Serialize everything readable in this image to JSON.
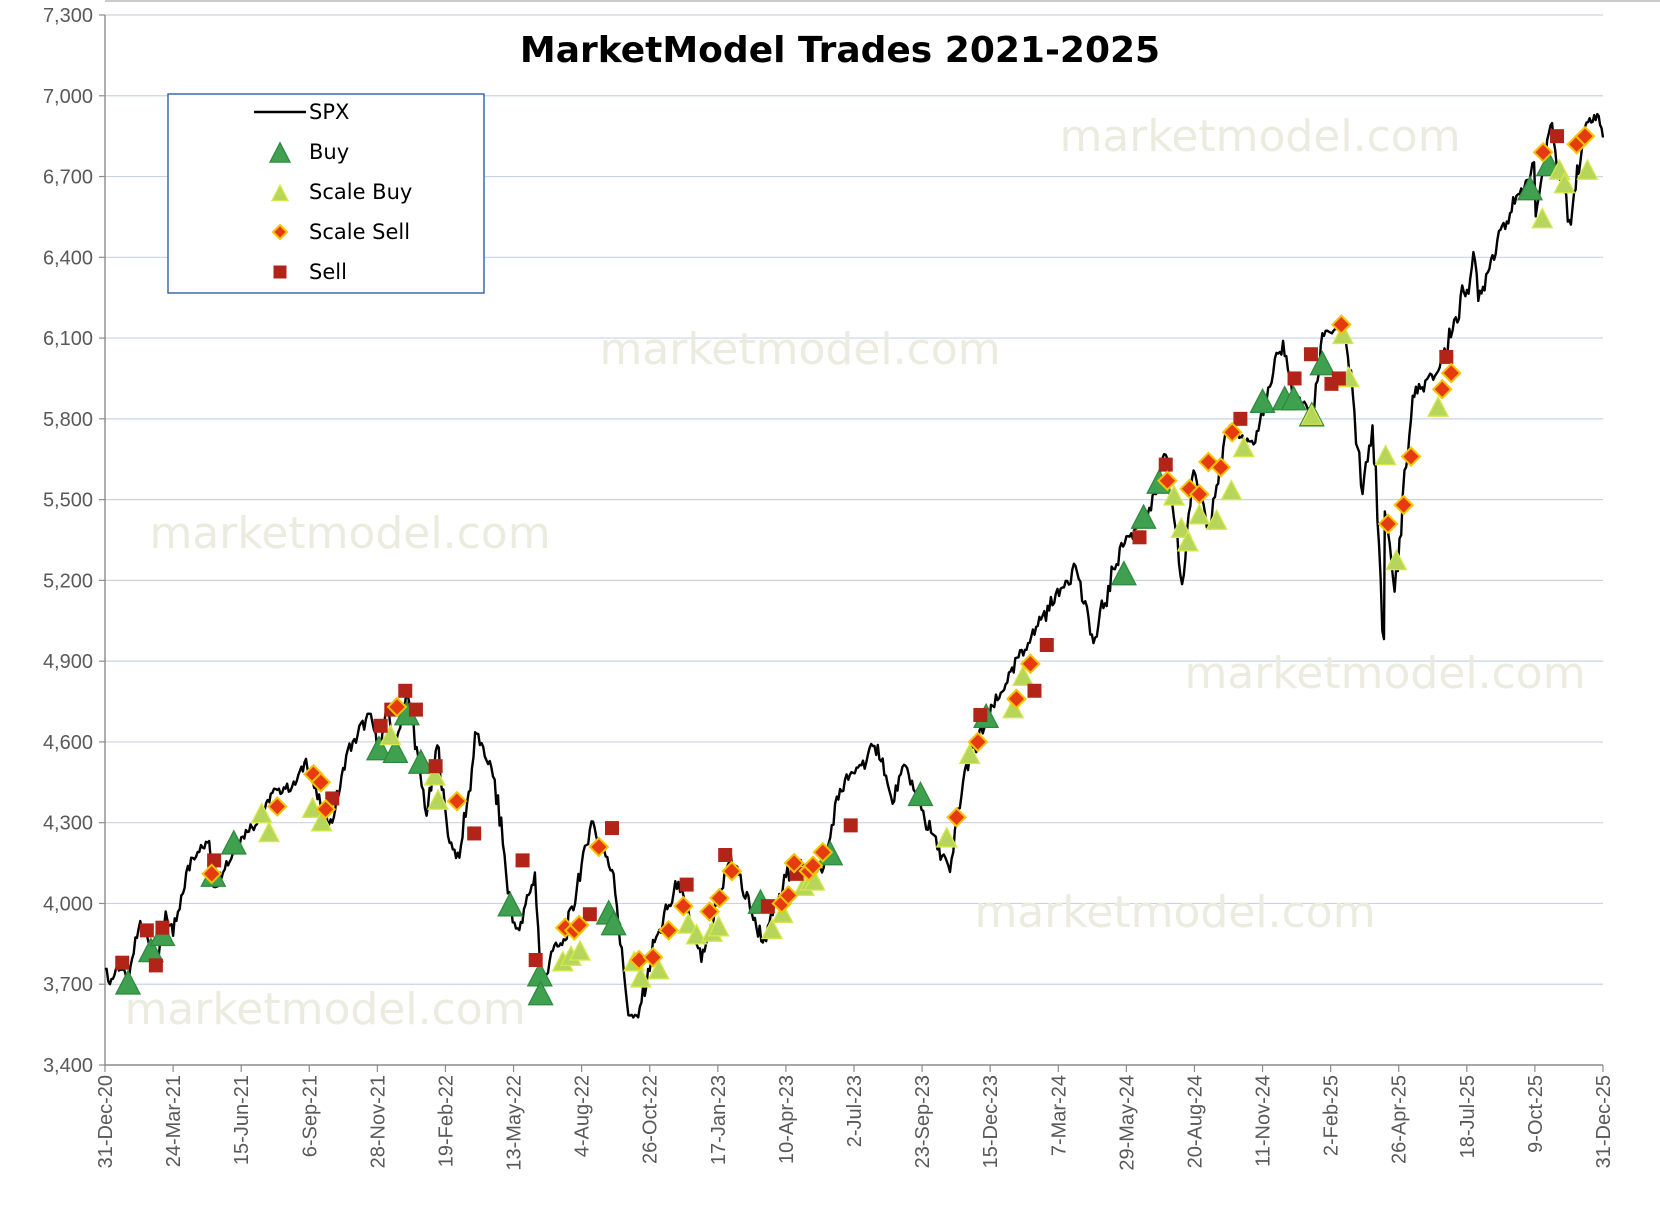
{
  "chart_data": {
    "type": "line",
    "title": "MarketModel Trades 2021-2025",
    "watermark_text": "marketmodel.com",
    "xlabel": "",
    "ylabel": "",
    "ylim": [
      3400,
      7300
    ],
    "xlim": [
      "2020-12-31",
      "2025-12-31"
    ],
    "grid": true,
    "legend_position": "top-left",
    "y_ticks": [
      "3,400",
      "3,700",
      "4,000",
      "4,300",
      "4,600",
      "4,900",
      "5,200",
      "5,500",
      "5,800",
      "6,100",
      "6,400",
      "6,700",
      "7,000",
      "7,300"
    ],
    "y_tick_values": [
      3400,
      3700,
      4000,
      4300,
      4600,
      4900,
      5200,
      5500,
      5800,
      6100,
      6400,
      6700,
      7000,
      7300
    ],
    "x_ticks": [
      {
        "label": "31-Dec-20",
        "date": "2020-12-31"
      },
      {
        "label": "24-Mar-21",
        "date": "2021-03-24"
      },
      {
        "label": "15-Jun-21",
        "date": "2021-06-15"
      },
      {
        "label": "6-Sep-21",
        "date": "2021-09-06"
      },
      {
        "label": "28-Nov-21",
        "date": "2021-11-28"
      },
      {
        "label": "19-Feb-22",
        "date": "2022-02-19"
      },
      {
        "label": "13-May-22",
        "date": "2022-05-13"
      },
      {
        "label": "4-Aug-22",
        "date": "2022-08-04"
      },
      {
        "label": "26-Oct-22",
        "date": "2022-10-26"
      },
      {
        "label": "17-Jan-23",
        "date": "2023-01-17"
      },
      {
        "label": "10-Apr-23",
        "date": "2023-04-10"
      },
      {
        "label": "2-Jul-23",
        "date": "2023-07-02"
      },
      {
        "label": "23-Sep-23",
        "date": "2023-09-23"
      },
      {
        "label": "15-Dec-23",
        "date": "2023-12-15"
      },
      {
        "label": "7-Mar-24",
        "date": "2024-03-07"
      },
      {
        "label": "29-May-24",
        "date": "2024-05-29"
      },
      {
        "label": "20-Aug-24",
        "date": "2024-08-20"
      },
      {
        "label": "11-Nov-24",
        "date": "2024-11-11"
      },
      {
        "label": "2-Feb-25",
        "date": "2025-02-02"
      },
      {
        "label": "26-Apr-25",
        "date": "2025-04-26"
      },
      {
        "label": "18-Jul-25",
        "date": "2025-07-18"
      },
      {
        "label": "9-Oct-25",
        "date": "2025-10-09"
      },
      {
        "label": "31-Dec-25",
        "date": "2025-12-31"
      }
    ],
    "colors": {
      "spx": "#000000",
      "buy": "#3fa14f",
      "scale_buy": "#b5d65a",
      "scale_buy_edge": "#d8e84a",
      "scale_sell": "#e63b10",
      "scale_sell_edge": "#f5c400",
      "sell": "#b32418",
      "grid": "#c9d4e3",
      "legend_border": "#2e5faa",
      "watermark": "#ecebdf"
    },
    "legend": [
      {
        "key": "spx",
        "label": "SPX",
        "marker": "line"
      },
      {
        "key": "buy",
        "label": "Buy",
        "marker": "triangle"
      },
      {
        "key": "scale_buy",
        "label": "Scale Buy",
        "marker": "triangle"
      },
      {
        "key": "scale_sell",
        "label": "Scale Sell",
        "marker": "diamond"
      },
      {
        "key": "sell",
        "label": "Sell",
        "marker": "square"
      }
    ],
    "series": [
      {
        "name": "SPX",
        "points": [
          [
            "2020-12-31",
            3756
          ],
          [
            "2021-01-06",
            3700
          ],
          [
            "2021-01-15",
            3770
          ],
          [
            "2021-01-29",
            3714
          ],
          [
            "2021-02-12",
            3935
          ],
          [
            "2021-03-04",
            3768
          ],
          [
            "2021-03-15",
            3970
          ],
          [
            "2021-03-24",
            3880
          ],
          [
            "2021-04-15",
            4170
          ],
          [
            "2021-05-07",
            4232
          ],
          [
            "2021-05-12",
            4063
          ],
          [
            "2021-06-15",
            4246
          ],
          [
            "2021-07-08",
            4320
          ],
          [
            "2021-07-23",
            4411
          ],
          [
            "2021-08-20",
            4441
          ],
          [
            "2021-09-02",
            4537
          ],
          [
            "2021-09-20",
            4358
          ],
          [
            "2021-10-04",
            4300
          ],
          [
            "2021-10-21",
            4549
          ],
          [
            "2021-11-18",
            4705
          ],
          [
            "2021-11-30",
            4567
          ],
          [
            "2021-12-10",
            4712
          ],
          [
            "2021-12-20",
            4568
          ],
          [
            "2022-01-03",
            4796
          ],
          [
            "2022-01-27",
            4326
          ],
          [
            "2022-02-09",
            4587
          ],
          [
            "2022-02-24",
            4225
          ],
          [
            "2022-03-08",
            4170
          ],
          [
            "2022-03-29",
            4631
          ],
          [
            "2022-04-20",
            4460
          ],
          [
            "2022-05-12",
            3930
          ],
          [
            "2022-05-20",
            3901
          ],
          [
            "2022-06-08",
            4115
          ],
          [
            "2022-06-16",
            3666
          ],
          [
            "2022-06-28",
            3821
          ],
          [
            "2022-07-15",
            3863
          ],
          [
            "2022-08-16",
            4305
          ],
          [
            "2022-09-12",
            4110
          ],
          [
            "2022-09-30",
            3585
          ],
          [
            "2022-10-12",
            3577
          ],
          [
            "2022-11-01",
            3856
          ],
          [
            "2022-11-30",
            4080
          ],
          [
            "2022-12-28",
            3783
          ],
          [
            "2023-01-10",
            3919
          ],
          [
            "2023-02-02",
            4179
          ],
          [
            "2023-03-13",
            3855
          ],
          [
            "2023-04-18",
            4154
          ],
          [
            "2023-05-24",
            4115
          ],
          [
            "2023-06-15",
            4425
          ],
          [
            "2023-07-31",
            4589
          ],
          [
            "2023-08-18",
            4370
          ],
          [
            "2023-09-01",
            4515
          ],
          [
            "2023-10-04",
            4263
          ],
          [
            "2023-10-27",
            4117
          ],
          [
            "2023-11-14",
            4495
          ],
          [
            "2023-12-28",
            4783
          ],
          [
            "2024-02-09",
            5027
          ],
          [
            "2024-03-28",
            5254
          ],
          [
            "2024-04-19",
            4967
          ],
          [
            "2024-05-21",
            5321
          ],
          [
            "2024-06-28",
            5460
          ],
          [
            "2024-07-16",
            5667
          ],
          [
            "2024-08-05",
            5186
          ],
          [
            "2024-08-19",
            5608
          ],
          [
            "2024-09-06",
            5408
          ],
          [
            "2024-09-30",
            5762
          ],
          [
            "2024-10-31",
            5705
          ],
          [
            "2024-12-06",
            6090
          ],
          [
            "2024-12-18",
            5872
          ],
          [
            "2025-01-13",
            5836
          ],
          [
            "2025-01-23",
            6118
          ],
          [
            "2025-02-19",
            6144
          ],
          [
            "2025-03-13",
            5521
          ],
          [
            "2025-03-25",
            5776
          ],
          [
            "2025-04-08",
            4982
          ],
          [
            "2025-04-09",
            5456
          ],
          [
            "2025-04-21",
            5158
          ],
          [
            "2025-05-13",
            5886
          ],
          [
            "2025-06-13",
            5977
          ],
          [
            "2025-07-28",
            6389
          ],
          [
            "2025-08-01",
            6238
          ],
          [
            "2025-08-28",
            6502
          ],
          [
            "2025-09-30",
            6688
          ],
          [
            "2025-10-08",
            6753
          ],
          [
            "2025-10-10",
            6552
          ],
          [
            "2025-10-28",
            6890
          ],
          [
            "2025-11-20",
            6538
          ],
          [
            "2025-12-11",
            6901
          ],
          [
            "2025-12-24",
            6932
          ],
          [
            "2025-12-31",
            6845
          ]
        ]
      },
      {
        "name": "Buy",
        "points": [
          [
            "2021-01-28",
            3700
          ],
          [
            "2021-02-25",
            3820
          ],
          [
            "2021-03-11",
            3880
          ],
          [
            "2021-05-12",
            4100
          ],
          [
            "2021-06-06",
            4220
          ],
          [
            "2021-11-30",
            4570
          ],
          [
            "2021-12-20",
            4560
          ],
          [
            "2022-01-03",
            4700
          ],
          [
            "2022-01-20",
            4520
          ],
          [
            "2022-05-09",
            3990
          ],
          [
            "2022-06-14",
            3730
          ],
          [
            "2022-06-15",
            3660
          ],
          [
            "2022-09-06",
            3960
          ],
          [
            "2022-09-12",
            3920
          ],
          [
            "2023-03-10",
            4000
          ],
          [
            "2023-06-03",
            4180
          ],
          [
            "2023-09-21",
            4400
          ],
          [
            "2023-12-10",
            4690
          ],
          [
            "2024-05-26",
            5220
          ],
          [
            "2024-06-19",
            5430
          ],
          [
            "2024-07-08",
            5560
          ],
          [
            "2024-11-11",
            5860
          ],
          [
            "2024-12-08",
            5870
          ],
          [
            "2024-12-19",
            5870
          ],
          [
            "2025-01-10",
            5810
          ],
          [
            "2025-01-23",
            6000
          ],
          [
            "2025-10-03",
            6650
          ],
          [
            "2025-10-26",
            6740
          ]
        ]
      },
      {
        "name": "Scale Buy",
        "points": [
          [
            "2021-07-10",
            4330
          ],
          [
            "2021-07-19",
            4260
          ],
          [
            "2021-09-10",
            4350
          ],
          [
            "2021-09-21",
            4300
          ],
          [
            "2021-12-14",
            4620
          ],
          [
            "2022-02-06",
            4470
          ],
          [
            "2022-02-10",
            4380
          ],
          [
            "2022-07-12",
            3780
          ],
          [
            "2022-07-22",
            3800
          ],
          [
            "2022-08-02",
            3820
          ],
          [
            "2022-10-07",
            3780
          ],
          [
            "2022-10-15",
            3720
          ],
          [
            "2022-11-06",
            3750
          ],
          [
            "2022-12-12",
            3920
          ],
          [
            "2022-12-22",
            3880
          ],
          [
            "2023-01-10",
            3890
          ],
          [
            "2023-01-18",
            3910
          ],
          [
            "2023-03-24",
            3900
          ],
          [
            "2023-04-06",
            3960
          ],
          [
            "2023-05-02",
            4060
          ],
          [
            "2023-05-10",
            4080
          ],
          [
            "2023-05-15",
            4080
          ],
          [
            "2023-10-23",
            4240
          ],
          [
            "2023-11-20",
            4550
          ],
          [
            "2024-01-12",
            4720
          ],
          [
            "2024-01-24",
            4840
          ],
          [
            "2024-07-26",
            5510
          ],
          [
            "2024-08-04",
            5390
          ],
          [
            "2024-08-12",
            5340
          ],
          [
            "2024-08-26",
            5440
          ],
          [
            "2024-09-16",
            5420
          ],
          [
            "2024-10-04",
            5530
          ],
          [
            "2024-10-19",
            5690
          ],
          [
            "2025-01-10",
            5810
          ],
          [
            "2025-02-17",
            6110
          ],
          [
            "2025-02-24",
            5950
          ],
          [
            "2025-04-10",
            5660
          ],
          [
            "2025-04-23",
            5270
          ],
          [
            "2025-06-13",
            5840
          ],
          [
            "2025-10-18",
            6540
          ],
          [
            "2025-11-08",
            6720
          ],
          [
            "2025-11-14",
            6670
          ],
          [
            "2025-12-12",
            6720
          ]
        ]
      },
      {
        "name": "Scale Sell",
        "points": [
          [
            "2021-05-10",
            4110
          ],
          [
            "2021-07-29",
            4360
          ],
          [
            "2021-09-11",
            4480
          ],
          [
            "2021-09-20",
            4450
          ],
          [
            "2021-09-26",
            4350
          ],
          [
            "2021-12-22",
            4730
          ],
          [
            "2022-03-05",
            4380
          ],
          [
            "2022-07-15",
            3910
          ],
          [
            "2022-07-26",
            3900
          ],
          [
            "2022-08-01",
            3920
          ],
          [
            "2022-08-25",
            4210
          ],
          [
            "2022-10-13",
            3790
          ],
          [
            "2022-10-30",
            3800
          ],
          [
            "2022-11-18",
            3900
          ],
          [
            "2022-12-06",
            3990
          ],
          [
            "2023-01-07",
            3970
          ],
          [
            "2023-01-19",
            4020
          ],
          [
            "2023-02-03",
            4120
          ],
          [
            "2023-04-05",
            4000
          ],
          [
            "2023-04-13",
            4030
          ],
          [
            "2023-04-20",
            4150
          ],
          [
            "2023-05-08",
            4120
          ],
          [
            "2023-05-13",
            4140
          ],
          [
            "2023-05-25",
            4190
          ],
          [
            "2023-11-04",
            4320
          ],
          [
            "2023-11-30",
            4600
          ],
          [
            "2024-01-16",
            4760
          ],
          [
            "2024-02-02",
            4890
          ],
          [
            "2024-07-18",
            5570
          ],
          [
            "2024-08-14",
            5540
          ],
          [
            "2024-08-26",
            5520
          ],
          [
            "2024-09-06",
            5640
          ],
          [
            "2024-09-21",
            5620
          ],
          [
            "2024-10-05",
            5750
          ],
          [
            "2025-02-15",
            6150
          ],
          [
            "2025-04-13",
            5410
          ],
          [
            "2025-05-02",
            5480
          ],
          [
            "2025-05-11",
            5660
          ],
          [
            "2025-06-18",
            5910
          ],
          [
            "2025-06-29",
            5970
          ],
          [
            "2025-10-19",
            6790
          ],
          [
            "2025-11-29",
            6820
          ],
          [
            "2025-12-09",
            6850
          ]
        ]
      },
      {
        "name": "Sell",
        "points": [
          [
            "2021-01-21",
            3780
          ],
          [
            "2021-02-20",
            3900
          ],
          [
            "2021-03-03",
            3770
          ],
          [
            "2021-03-11",
            3910
          ],
          [
            "2021-05-13",
            4160
          ],
          [
            "2021-10-04",
            4390
          ],
          [
            "2021-12-02",
            4660
          ],
          [
            "2021-12-15",
            4720
          ],
          [
            "2022-01-01",
            4790
          ],
          [
            "2022-01-14",
            4720
          ],
          [
            "2022-02-07",
            4510
          ],
          [
            "2022-03-26",
            4260
          ],
          [
            "2022-05-24",
            4160
          ],
          [
            "2022-06-09",
            3790
          ],
          [
            "2022-08-14",
            3960
          ],
          [
            "2022-09-10",
            4280
          ],
          [
            "2022-12-10",
            4070
          ],
          [
            "2023-01-26",
            4180
          ],
          [
            "2023-03-19",
            3990
          ],
          [
            "2023-04-23",
            4110
          ],
          [
            "2023-06-28",
            4290
          ],
          [
            "2023-12-03",
            4700
          ],
          [
            "2024-02-07",
            4790
          ],
          [
            "2024-02-22",
            4960
          ],
          [
            "2024-06-14",
            5360
          ],
          [
            "2024-07-16",
            5630
          ],
          [
            "2024-10-15",
            5800
          ],
          [
            "2024-12-20",
            5950
          ],
          [
            "2025-01-09",
            6040
          ],
          [
            "2025-02-03",
            5930
          ],
          [
            "2025-02-12",
            5950
          ],
          [
            "2025-06-23",
            6030
          ],
          [
            "2025-11-05",
            6850
          ]
        ]
      }
    ]
  }
}
